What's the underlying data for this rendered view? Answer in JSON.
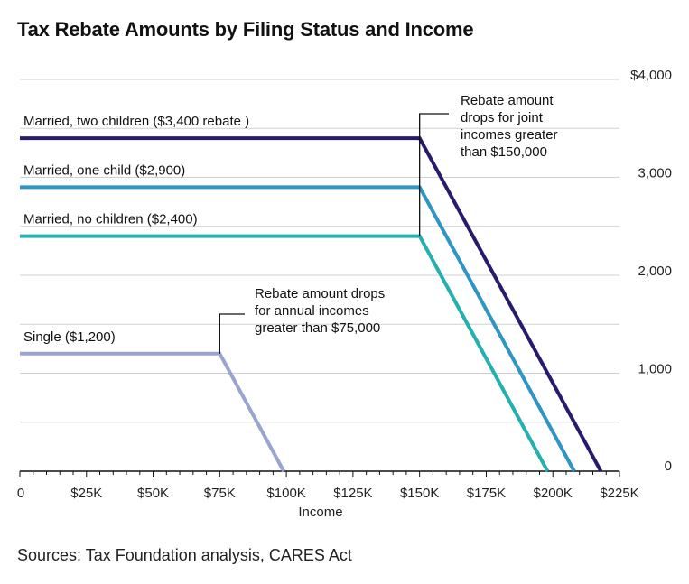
{
  "title": "Tax Rebate Amounts by Filing Status and Income",
  "source": "Sources: Tax Foundation analysis, CARES Act",
  "colors": {
    "married_two_children": "#2a1a6e",
    "married_one_child": "#2e95c4",
    "married_no_children": "#25b0b0",
    "single": "#9aa5cf",
    "grid": "#d0d0d0",
    "annotation": "#111111"
  },
  "chart_data": {
    "type": "line",
    "title": "Tax Rebate Amounts by Filing Status and Income",
    "xlabel": "Income",
    "ylabel": "",
    "xlim": [
      0,
      225000
    ],
    "ylim": [
      0,
      4000
    ],
    "x_ticks": [
      0,
      25000,
      50000,
      75000,
      100000,
      125000,
      150000,
      175000,
      200000,
      225000
    ],
    "x_tick_labels": [
      "0",
      "$25K",
      "$50K",
      "$75K",
      "$100K",
      "$125K",
      "$150K",
      "$175K",
      "$200K",
      "$225K"
    ],
    "y_ticks": [
      0,
      1000,
      2000,
      3000,
      4000
    ],
    "y_tick_labels": [
      "0",
      "1,000",
      "2,000",
      "3,000",
      "$4,000"
    ],
    "y_axis_side": "right",
    "grid": "horizontal",
    "series": [
      {
        "name": "Married, two children ($3,400 rebate )",
        "key": "married_two_children",
        "points": [
          [
            0,
            3400
          ],
          [
            150000,
            3400
          ],
          [
            218000,
            0
          ]
        ]
      },
      {
        "name": "Married, one child ($2,900)",
        "key": "married_one_child",
        "points": [
          [
            0,
            2900
          ],
          [
            150000,
            2900
          ],
          [
            208000,
            0
          ]
        ]
      },
      {
        "name": "Married, no children ($2,400)",
        "key": "married_no_children",
        "points": [
          [
            0,
            2400
          ],
          [
            150000,
            2400
          ],
          [
            198000,
            0
          ]
        ]
      },
      {
        "name": "Single ($1,200)",
        "key": "single",
        "points": [
          [
            0,
            1200
          ],
          [
            75000,
            1200
          ],
          [
            99000,
            0
          ]
        ]
      }
    ],
    "annotations": [
      {
        "lines": [
          "Rebate amount",
          "drops for joint",
          "incomes greater",
          "than $150,000"
        ],
        "x": 150000,
        "y_from": 2400,
        "y_to": 3700
      },
      {
        "lines": [
          "Rebate amount drops",
          "for annual incomes",
          "greater than $75,000"
        ],
        "x": 75000,
        "y_from": 1200,
        "y_to": 1600
      }
    ]
  }
}
